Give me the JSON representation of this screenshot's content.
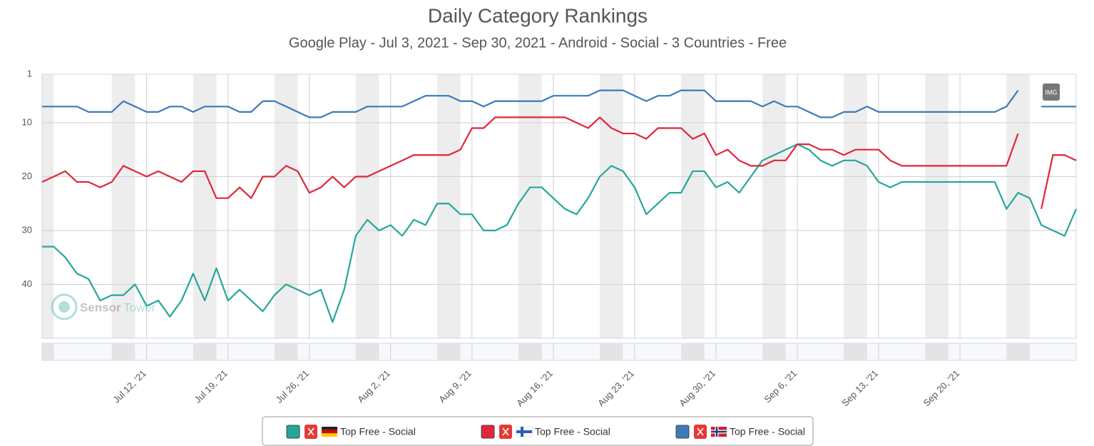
{
  "chart_data": {
    "type": "line",
    "title": "Daily Category Rankings",
    "subtitle": "Google Play - Jul 3, 2021 - Sep 30, 2021 - Android - Social - 3 Countries - Free",
    "export_button": "IMG",
    "watermark": [
      "Sensor",
      "Tower"
    ],
    "x": [
      "2021-07-03",
      "2021-07-04",
      "2021-07-05",
      "2021-07-06",
      "2021-07-07",
      "2021-07-08",
      "2021-07-09",
      "2021-07-10",
      "2021-07-11",
      "2021-07-12",
      "2021-07-13",
      "2021-07-14",
      "2021-07-15",
      "2021-07-16",
      "2021-07-17",
      "2021-07-18",
      "2021-07-19",
      "2021-07-20",
      "2021-07-21",
      "2021-07-22",
      "2021-07-23",
      "2021-07-24",
      "2021-07-25",
      "2021-07-26",
      "2021-07-27",
      "2021-07-28",
      "2021-07-29",
      "2021-07-30",
      "2021-07-31",
      "2021-08-01",
      "2021-08-02",
      "2021-08-03",
      "2021-08-04",
      "2021-08-05",
      "2021-08-06",
      "2021-08-07",
      "2021-08-08",
      "2021-08-09",
      "2021-08-10",
      "2021-08-11",
      "2021-08-12",
      "2021-08-13",
      "2021-08-14",
      "2021-08-15",
      "2021-08-16",
      "2021-08-17",
      "2021-08-18",
      "2021-08-19",
      "2021-08-20",
      "2021-08-21",
      "2021-08-22",
      "2021-08-23",
      "2021-08-24",
      "2021-08-25",
      "2021-08-26",
      "2021-08-27",
      "2021-08-28",
      "2021-08-29",
      "2021-08-30",
      "2021-08-31",
      "2021-09-01",
      "2021-09-02",
      "2021-09-03",
      "2021-09-04",
      "2021-09-05",
      "2021-09-06",
      "2021-09-07",
      "2021-09-08",
      "2021-09-09",
      "2021-09-10",
      "2021-09-11",
      "2021-09-12",
      "2021-09-13",
      "2021-09-14",
      "2021-09-15",
      "2021-09-16",
      "2021-09-17",
      "2021-09-18",
      "2021-09-19",
      "2021-09-20",
      "2021-09-21",
      "2021-09-22",
      "2021-09-23",
      "2021-09-24",
      "2021-09-25",
      "2021-09-26",
      "2021-09-27",
      "2021-09-28",
      "2021-09-29",
      "2021-09-30"
    ],
    "xlim": [
      "2021-07-03",
      "2021-09-30"
    ],
    "xticks": [
      {
        "value": "2021-07-12",
        "label": "Jul 12, '21"
      },
      {
        "value": "2021-07-19",
        "label": "Jul 19, '21"
      },
      {
        "value": "2021-07-26",
        "label": "Jul 26, '21"
      },
      {
        "value": "2021-08-02",
        "label": "Aug 2, '21"
      },
      {
        "value": "2021-08-09",
        "label": "Aug 9, '21"
      },
      {
        "value": "2021-08-16",
        "label": "Aug 16, '21"
      },
      {
        "value": "2021-08-23",
        "label": "Aug 23, '21"
      },
      {
        "value": "2021-08-30",
        "label": "Aug 30, '21"
      },
      {
        "value": "2021-09-06",
        "label": "Sep 6, '21"
      },
      {
        "value": "2021-09-13",
        "label": "Sep 13, '21"
      },
      {
        "value": "2021-09-20",
        "label": "Sep 20, '21"
      }
    ],
    "ylim": [
      1,
      50
    ],
    "y_reversed": true,
    "yticks": [
      1,
      10,
      20,
      30,
      40
    ],
    "grid": true,
    "series": [
      {
        "name": "Top Free - Social",
        "country": "DE",
        "color": "#26a69a",
        "values": [
          33,
          33,
          35,
          38,
          39,
          43,
          42,
          42,
          40,
          44,
          43,
          46,
          43,
          38,
          43,
          37,
          43,
          41,
          43,
          45,
          42,
          40,
          41,
          42,
          41,
          47,
          41,
          31,
          28,
          30,
          29,
          31,
          28,
          29,
          25,
          25,
          27,
          27,
          30,
          30,
          29,
          25,
          22,
          22,
          24,
          26,
          27,
          24,
          20,
          18,
          19,
          22,
          27,
          25,
          23,
          23,
          19,
          19,
          22,
          21,
          23,
          20,
          17,
          16,
          15,
          14,
          15,
          17,
          18,
          17,
          17,
          18,
          21,
          22,
          21,
          21,
          21,
          21,
          21,
          21,
          21,
          21,
          21,
          26,
          23,
          24,
          29,
          30,
          31,
          26
        ]
      },
      {
        "name": "Top Free - Social",
        "country": "FI",
        "color": "#e0263a",
        "values": [
          21,
          20,
          19,
          21,
          21,
          22,
          21,
          18,
          19,
          20,
          19,
          20,
          21,
          19,
          19,
          24,
          24,
          22,
          24,
          20,
          20,
          18,
          19,
          23,
          22,
          20,
          22,
          20,
          20,
          19,
          18,
          17,
          16,
          16,
          16,
          16,
          15,
          11,
          11,
          9,
          9,
          9,
          9,
          9,
          9,
          9,
          10,
          11,
          9,
          11,
          12,
          12,
          13,
          11,
          11,
          11,
          13,
          12,
          16,
          15,
          17,
          18,
          18,
          17,
          17,
          14,
          14,
          15,
          15,
          16,
          15,
          15,
          15,
          17,
          18,
          18,
          18,
          18,
          18,
          18,
          18,
          18,
          18,
          18,
          12,
          null,
          26,
          16,
          16,
          17
        ]
      },
      {
        "name": "Top Free - Social",
        "country": "NO",
        "color": "#3d7ab8",
        "values": [
          7,
          7,
          7,
          7,
          8,
          8,
          8,
          6,
          7,
          8,
          8,
          7,
          7,
          8,
          7,
          7,
          7,
          8,
          8,
          6,
          6,
          7,
          8,
          9,
          9,
          8,
          8,
          8,
          7,
          7,
          7,
          7,
          6,
          5,
          5,
          5,
          6,
          6,
          7,
          6,
          6,
          6,
          6,
          6,
          5,
          5,
          5,
          5,
          4,
          4,
          4,
          5,
          6,
          5,
          5,
          4,
          4,
          4,
          6,
          6,
          6,
          6,
          7,
          6,
          7,
          7,
          8,
          9,
          9,
          8,
          8,
          7,
          8,
          8,
          8,
          8,
          8,
          8,
          8,
          8,
          8,
          8,
          8,
          7,
          4,
          null,
          7,
          7,
          7,
          7
        ]
      }
    ]
  }
}
